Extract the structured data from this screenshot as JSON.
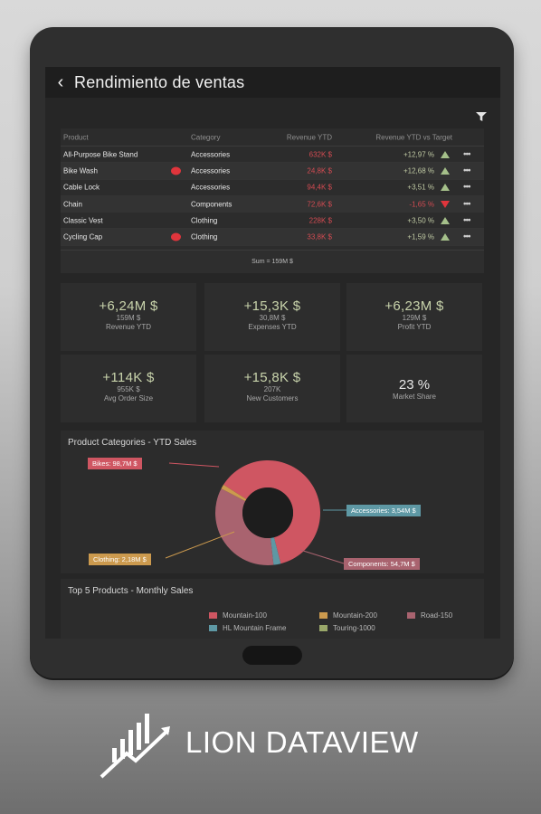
{
  "app": {
    "title": "Rendimiento de ventas",
    "back_glyph": "‹"
  },
  "table": {
    "headers": [
      "Product",
      "Category",
      "Revenue YTD",
      "Revenue YTD vs Target"
    ],
    "rows": [
      {
        "product": "All-Purpose Bike Stand",
        "flag": false,
        "category": "Accessories",
        "revenue": "632K $",
        "vs_target": "+12,97 %",
        "trend": "up"
      },
      {
        "product": "Bike Wash",
        "flag": true,
        "category": "Accessories",
        "revenue": "24,8K $",
        "vs_target": "+12,68 %",
        "trend": "up"
      },
      {
        "product": "Cable Lock",
        "flag": false,
        "category": "Accessories",
        "revenue": "94,4K $",
        "vs_target": "+3,51 %",
        "trend": "up"
      },
      {
        "product": "Chain",
        "flag": false,
        "category": "Components",
        "revenue": "72,6K $",
        "vs_target": "-1,65 %",
        "trend": "down"
      },
      {
        "product": "Classic Vest",
        "flag": false,
        "category": "Clothing",
        "revenue": "228K $",
        "vs_target": "+3,50 %",
        "trend": "up"
      },
      {
        "product": "Cycling Cap",
        "flag": true,
        "category": "Clothing",
        "revenue": "33,8K $",
        "vs_target": "+1,59 %",
        "trend": "up"
      }
    ],
    "more_glyph": "•••",
    "sum": "Sum = 159M $"
  },
  "kpis": [
    {
      "value": "+6,24M $",
      "sub": "159M $",
      "label": "Revenue YTD"
    },
    {
      "value": "+15,3K $",
      "sub": "30,8M $",
      "label": "Expenses YTD"
    },
    {
      "value": "+6,23M $",
      "sub": "129M $",
      "label": "Profit YTD"
    },
    {
      "value": "+114K $",
      "sub": "955K $",
      "label": "Avg Order Size"
    },
    {
      "value": "+15,8K $",
      "sub": "207K",
      "label": "New Customers"
    },
    {
      "value": "23 %",
      "label": "Market Share"
    }
  ],
  "chart_data": {
    "type": "pie",
    "title": "Product Categories - YTD Sales",
    "categories": [
      "Bikes",
      "Accessories",
      "Components",
      "Clothing"
    ],
    "values": [
      98.7,
      3.54,
      54.7,
      2.18
    ],
    "unit": "M $",
    "labels": [
      "Bikes: 98,7M $",
      "Accessories: 3,54M $",
      "Components: 54,7M $",
      "Clothing: 2,18M $"
    ],
    "colors": [
      "#cf5662",
      "#5e98a4",
      "#a9636f",
      "#cc9a4e"
    ],
    "donut": true
  },
  "top5": {
    "title": "Top 5 Products - Monthly Sales",
    "legend": [
      {
        "name": "Mountain-100",
        "color": "#cf5662"
      },
      {
        "name": "Mountain-200",
        "color": "#cc9a4e"
      },
      {
        "name": "Road-150",
        "color": "#a9636f"
      },
      {
        "name": "HL Mountain Frame",
        "color": "#5e98a4"
      },
      {
        "name": "Touring-1000",
        "color": "#9aa86a"
      }
    ]
  },
  "brand": {
    "name": "LION DATAVIEW"
  },
  "icons": {
    "back": "chevron-left-icon",
    "filter": "filter-icon",
    "more": "more-horizontal-icon",
    "brand": "lion-dataview-logo"
  }
}
